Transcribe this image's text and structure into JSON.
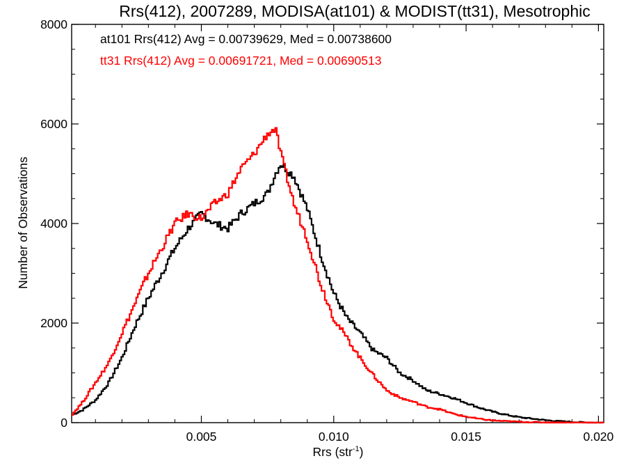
{
  "chart_data": {
    "type": "line",
    "title": "Rrs(412), 2007289, MODISA(at101) & MODIST(tt31), Mesotrophic",
    "xlabel": "Rrs (str",
    "xlabel_sup": "-1",
    "xlabel_close": ")",
    "ylabel": "Number of Observations",
    "xlim": [
      0.0001,
      0.0202
    ],
    "ylim": [
      0,
      8000
    ],
    "x_ticks": [
      0.005,
      0.01,
      0.015,
      0.02
    ],
    "x_tick_labels": [
      "0.005",
      "0.010",
      "0.015",
      "0.020"
    ],
    "y_ticks": [
      0,
      2000,
      4000,
      6000,
      8000
    ],
    "y_tick_labels": [
      "0",
      "2000",
      "4000",
      "6000",
      "8000"
    ],
    "grid": false,
    "step": true,
    "annotations": [
      {
        "text": "at101 Rrs(412) Avg = 0.00739629, Med = 0.00738600",
        "color": "#000000"
      },
      {
        "text": "tt31 Rrs(412) Avg = 0.00691721, Med = 0.00690513",
        "color": "#ff0000"
      }
    ],
    "series": [
      {
        "color": "#000000",
        "x": [
          0.0001,
          0.0005,
          0.001,
          0.0015,
          0.002,
          0.0025,
          0.003,
          0.0035,
          0.004,
          0.0045,
          0.005,
          0.0055,
          0.006,
          0.0065,
          0.007,
          0.0075,
          0.0078,
          0.008,
          0.0085,
          0.009,
          0.0095,
          0.01,
          0.0105,
          0.011,
          0.0115,
          0.012,
          0.0125,
          0.013,
          0.0135,
          0.014,
          0.0145,
          0.015,
          0.0155,
          0.016,
          0.0165,
          0.017,
          0.0175,
          0.018,
          0.0185,
          0.019,
          0.0195,
          0.0202
        ],
        "y": [
          150,
          250,
          450,
          800,
          1300,
          1950,
          2500,
          3000,
          3500,
          3900,
          4200,
          4000,
          3900,
          4200,
          4400,
          4600,
          5000,
          5200,
          4950,
          4300,
          3400,
          2600,
          2100,
          1800,
          1450,
          1300,
          1000,
          850,
          650,
          580,
          500,
          400,
          300,
          220,
          160,
          110,
          80,
          50,
          30,
          15,
          5,
          0
        ]
      },
      {
        "color": "#ff0000",
        "x": [
          0.0001,
          0.0005,
          0.001,
          0.0015,
          0.002,
          0.0025,
          0.003,
          0.0035,
          0.004,
          0.0045,
          0.005,
          0.0055,
          0.006,
          0.0065,
          0.007,
          0.0075,
          0.0078,
          0.008,
          0.0085,
          0.009,
          0.0095,
          0.01,
          0.0105,
          0.011,
          0.0115,
          0.012,
          0.0125,
          0.013,
          0.0135,
          0.014,
          0.0145,
          0.015,
          0.0155,
          0.016,
          0.0165,
          0.017,
          0.0175,
          0.018,
          0.0185,
          0.019,
          0.0195,
          0.0202
        ],
        "y": [
          150,
          400,
          800,
          1200,
          1800,
          2400,
          3000,
          3500,
          4000,
          4200,
          4100,
          4400,
          4600,
          5100,
          5400,
          5800,
          5900,
          5400,
          4400,
          3700,
          2800,
          2100,
          1700,
          1300,
          950,
          650,
          500,
          420,
          320,
          270,
          180,
          120,
          75,
          45,
          30,
          18,
          10,
          5,
          3,
          2,
          1,
          0
        ]
      }
    ]
  }
}
